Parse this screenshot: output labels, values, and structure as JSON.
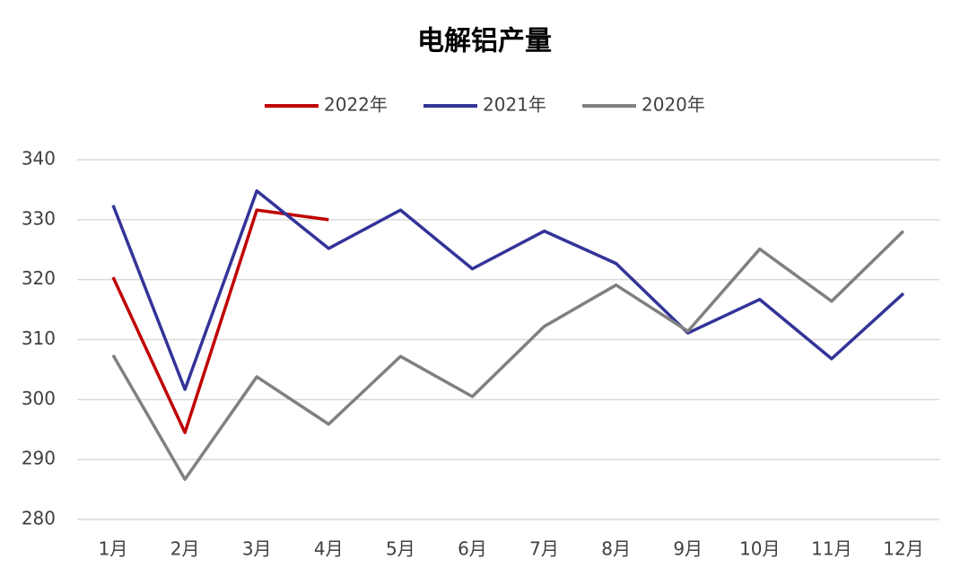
{
  "chart_data": {
    "type": "line",
    "title": "电解铝产量",
    "categories": [
      "1月",
      "2月",
      "3月",
      "4月",
      "5月",
      "6月",
      "7月",
      "8月",
      "9月",
      "10月",
      "11月",
      "12月"
    ],
    "series": [
      {
        "name": "2022年",
        "color": "#c00000",
        "values": [
          320.4,
          294.5,
          331.6,
          330.0,
          null,
          null,
          null,
          null,
          null,
          null,
          null,
          null
        ]
      },
      {
        "name": "2021年",
        "color": "#333399",
        "values": [
          332.4,
          301.7,
          334.8,
          325.2,
          331.6,
          321.8,
          328.1,
          322.7,
          311.1,
          316.7,
          306.8,
          317.7
        ]
      },
      {
        "name": "2020年",
        "color": "#808080",
        "values": [
          307.4,
          286.7,
          303.8,
          295.9,
          307.2,
          300.5,
          312.2,
          319.1,
          311.4,
          325.1,
          316.4,
          328.1
        ]
      }
    ],
    "ylim": [
      280,
      340
    ],
    "yticks": [
      280,
      290,
      300,
      310,
      320,
      330,
      340
    ],
    "grid": true,
    "legend": "top"
  }
}
